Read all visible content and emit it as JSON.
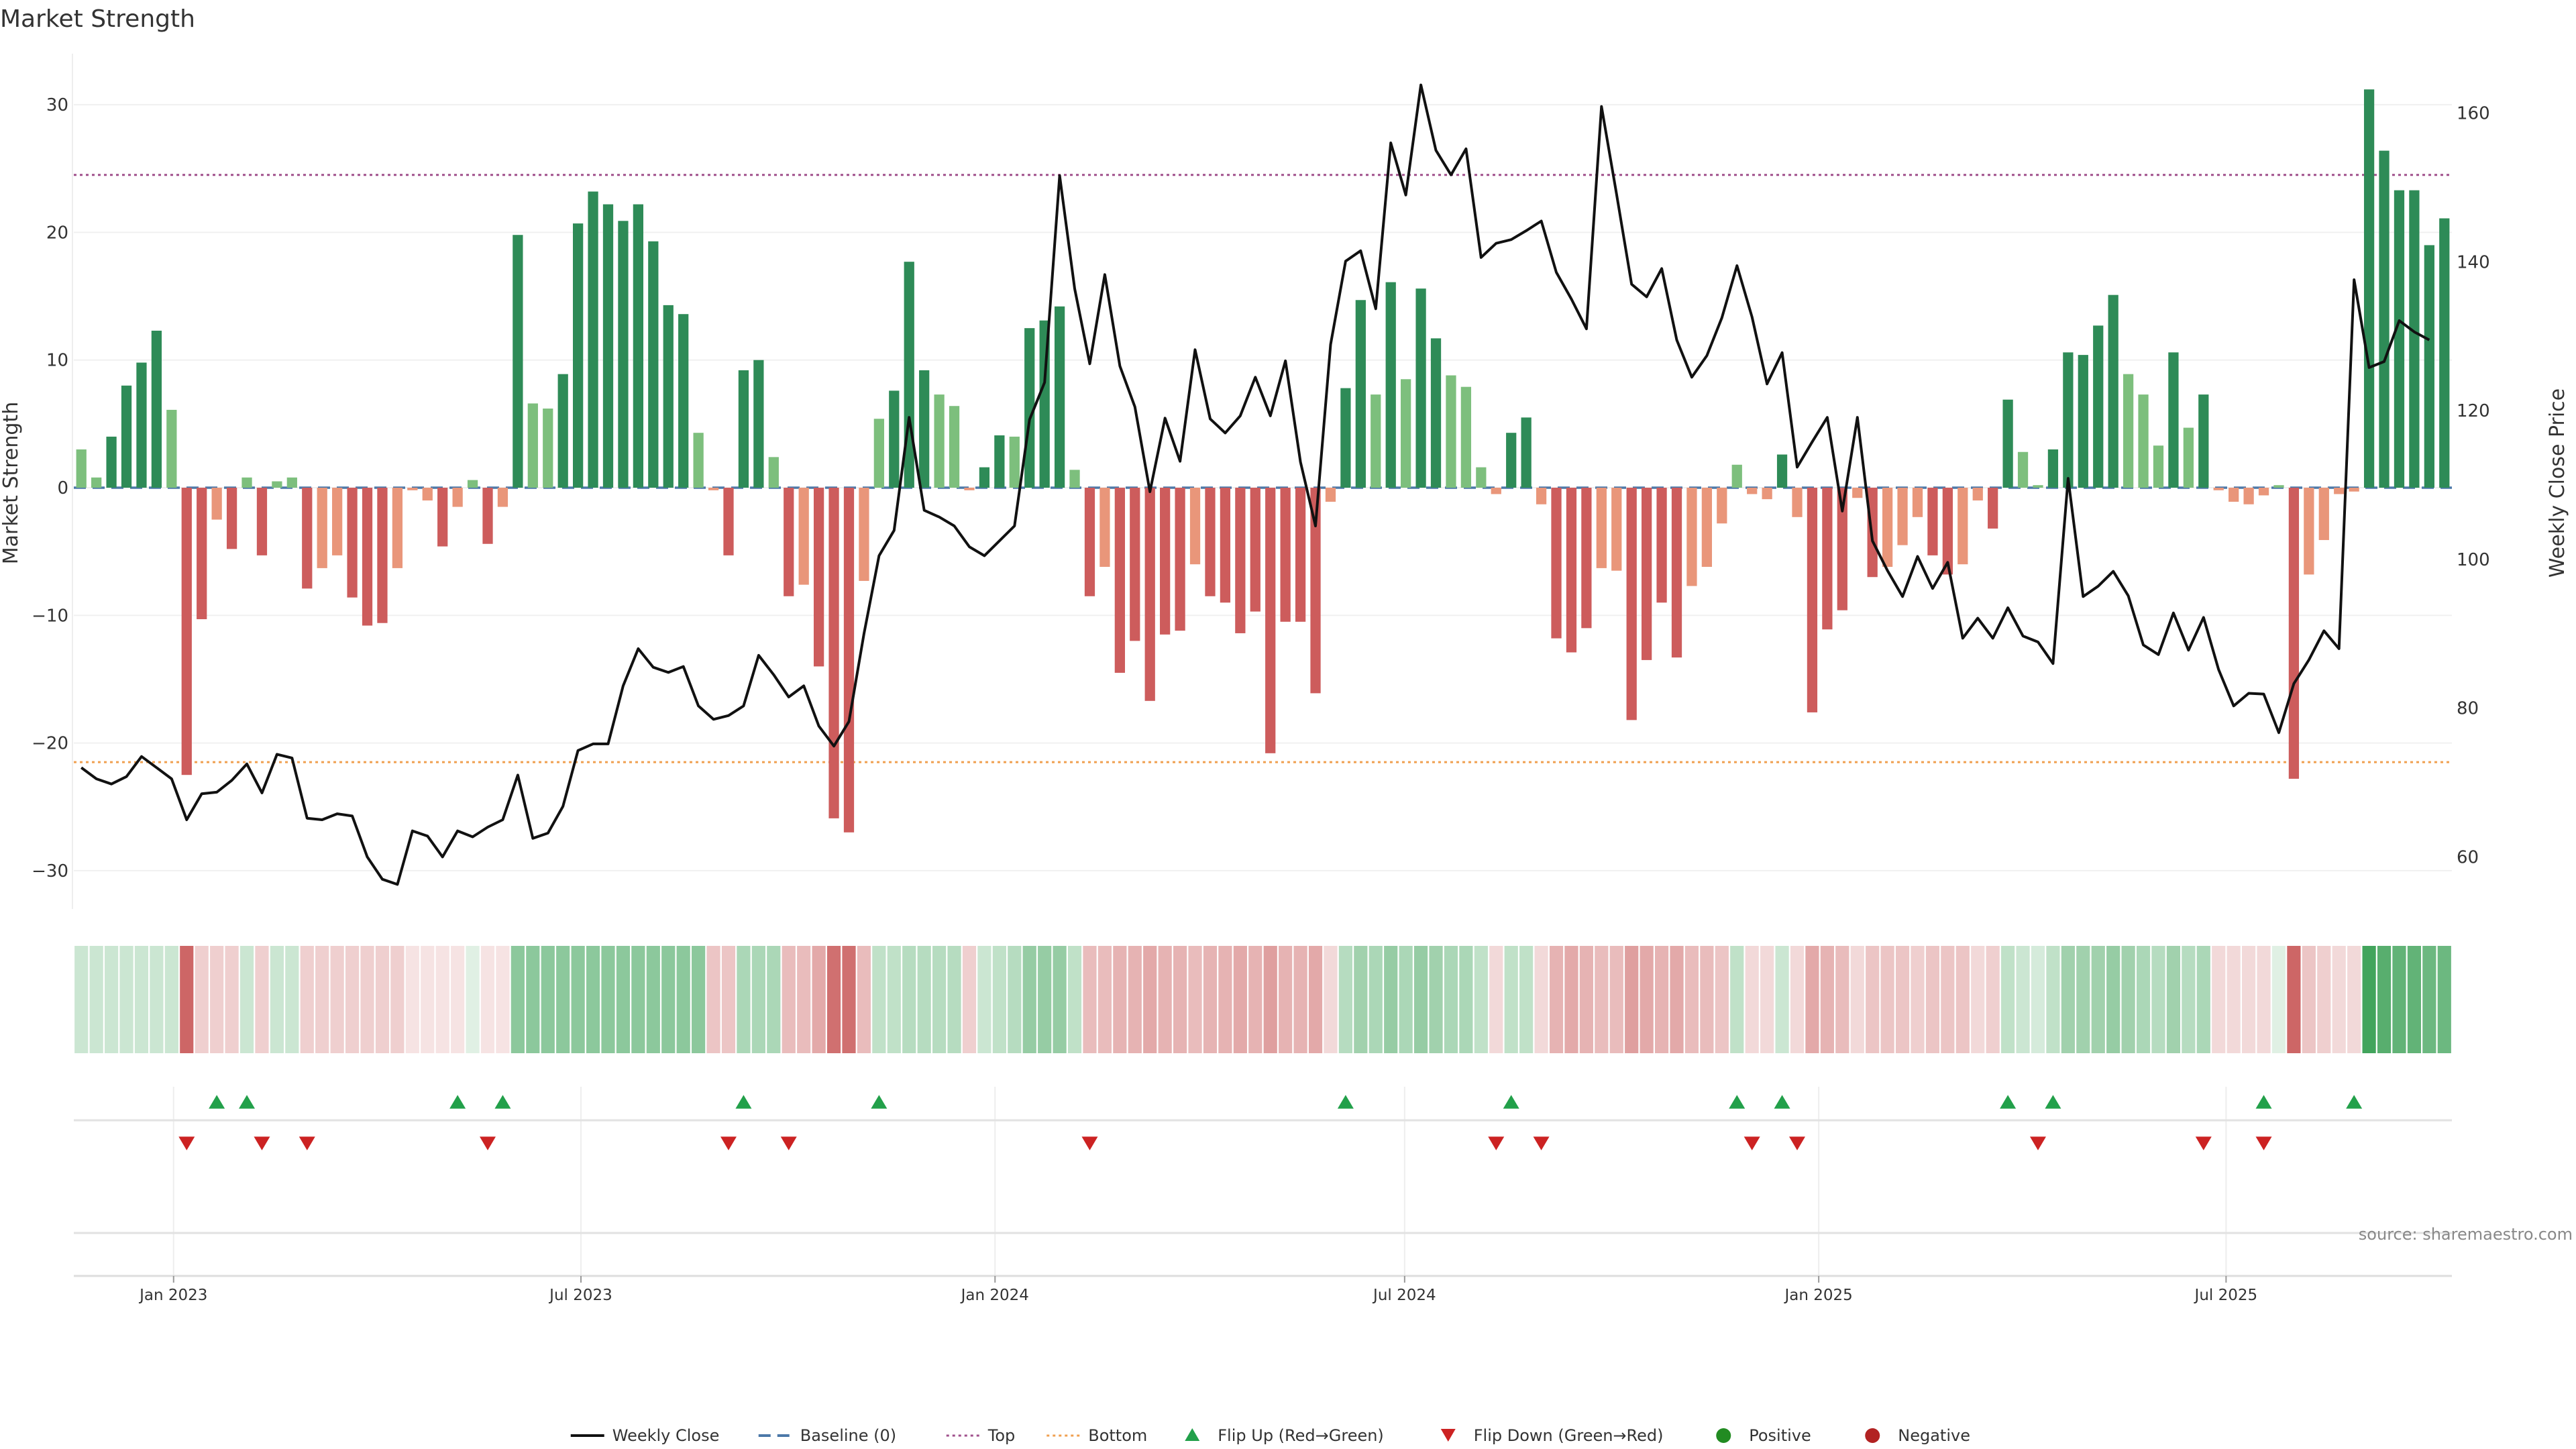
{
  "chart_data": {
    "type": "bar",
    "title": "Market Strength",
    "ylabel": "Market Strength",
    "y2label": "Weekly Close Price",
    "ylim": [
      -33,
      34
    ],
    "y2lim": [
      53,
      168
    ],
    "yticks": [
      30,
      20,
      10,
      0,
      -10,
      -20,
      -30
    ],
    "ytick_labels": [
      "30",
      "20",
      "10",
      "0",
      "−10",
      "−20",
      "−30"
    ],
    "y2ticks": [
      160,
      140,
      120,
      100,
      80,
      60
    ],
    "xdate_start": "2022-11-21",
    "xdate_end": "2025-10-06",
    "xticks": [
      {
        "date": "2023-01-01",
        "label": "Jan 2023"
      },
      {
        "date": "2023-07-01",
        "label": "Jul 2023"
      },
      {
        "date": "2024-01-01",
        "label": "Jan 2024"
      },
      {
        "date": "2024-07-01",
        "label": "Jul 2024"
      },
      {
        "date": "2025-01-01",
        "label": "Jan 2025"
      },
      {
        "date": "2025-07-01",
        "label": "Jul 2025"
      }
    ],
    "top_level": 24.5,
    "bottom_level": -21.5,
    "strength": [
      3,
      0.8,
      4,
      8,
      9.8,
      12.3,
      6.1,
      -22.5,
      -10.3,
      -2.5,
      -4.8,
      0.8,
      -5.3,
      0.5,
      0.8,
      -7.9,
      -6.3,
      -5.3,
      -8.6,
      -10.8,
      -10.6,
      -6.3,
      -0.2,
      -1,
      -4.6,
      -1.5,
      0.6,
      -4.4,
      -1.5,
      19.8,
      6.6,
      6.2,
      8.9,
      20.7,
      23.2,
      22.2,
      20.9,
      22.2,
      19.3,
      14.3,
      13.6,
      4.3,
      -0.2,
      -5.3,
      9.2,
      10,
      2.4,
      -8.5,
      -7.6,
      -14,
      -25.9,
      -27,
      -7.3,
      5.4,
      7.6,
      17.7,
      9.2,
      7.3,
      6.4,
      -0.2,
      1.6,
      4.1,
      4,
      12.5,
      13.1,
      14.2,
      1.4,
      -8.5,
      -6.2,
      -14.5,
      -12,
      -16.7,
      -11.5,
      -11.2,
      -6,
      -8.5,
      -9,
      -11.4,
      -9.7,
      -20.8,
      -10.5,
      -10.5,
      -16.1,
      -1.1,
      7.8,
      14.7,
      7.3,
      16.1,
      8.5,
      15.6,
      11.7,
      8.8,
      7.9,
      1.6,
      -0.5,
      4.3,
      5.5,
      -1.3,
      -11.8,
      -12.9,
      -11,
      -6.3,
      -6.5,
      -18.2,
      -13.5,
      -9,
      -13.3,
      -7.7,
      -6.2,
      -2.8,
      1.8,
      -0.5,
      -0.9,
      2.6,
      -2.3,
      -17.6,
      -11.1,
      -9.6,
      -0.8,
      -7,
      -6.2,
      -4.5,
      -2.3,
      -5.3,
      -6.8,
      -6,
      -1,
      -3.2,
      6.9,
      2.8,
      0.2,
      3,
      10.6,
      10.4,
      12.7,
      15.1,
      8.9,
      7.3,
      3.3,
      10.6,
      4.7,
      7.3,
      -0.2,
      -1.1,
      -1.3,
      -0.6,
      0.2,
      -22.8,
      -6.8,
      -4.1,
      -0.5,
      -0.3,
      31.2,
      26.4,
      23.3,
      23.3,
      19,
      21.1
    ],
    "close": [
      72,
      70.5,
      69.8,
      70.8,
      73.5,
      72,
      70.5,
      65,
      68.5,
      68.7,
      70.3,
      72.5,
      68.6,
      73.8,
      73.3,
      65.2,
      65,
      65.8,
      65.5,
      60,
      57,
      56.3,
      63.5,
      62.8,
      60,
      63.5,
      62.7,
      64,
      65,
      71,
      62.5,
      63.2,
      66.8,
      74.3,
      75.2,
      75.2,
      83,
      88,
      85.5,
      84.8,
      85.6,
      80.3,
      78.5,
      79,
      80.3,
      87.1,
      84.5,
      81.5,
      83,
      77.6,
      74.9,
      78.2,
      90,
      100.5,
      103.9,
      119.1,
      106.6,
      105.7,
      104.5,
      101.7,
      100.5,
      102.5,
      104.5,
      118.8,
      123.8,
      151.6,
      136.4,
      126.3,
      138.3,
      126,
      120.5,
      109.1,
      119,
      113.2,
      128.2,
      118.9,
      117,
      119.3,
      124.5,
      119.3,
      126.7,
      113.1,
      104.5,
      128.9,
      140.1,
      141.5,
      133.7,
      156,
      149,
      163.8,
      155,
      151.7,
      155.2,
      140.6,
      142.5,
      143,
      144.2,
      145.5,
      138.6,
      135,
      131,
      160.9,
      149.1,
      137,
      135.3,
      139.1,
      129.5,
      124.5,
      127.4,
      132.5,
      139.5,
      132.6,
      123.6,
      127.8,
      112.4,
      115.8,
      119.1,
      106.5,
      119.1,
      102.5,
      98.5,
      95,
      100.4,
      96.1,
      99.6,
      89.4,
      92.1,
      89.4,
      93.5,
      89.7,
      88.9,
      86,
      110.9,
      95,
      96.4,
      98.4,
      95.1,
      88.5,
      87.2,
      92.8,
      87.8,
      92.2,
      85.2,
      80.3,
      82,
      81.9,
      76.7,
      83.3,
      86.5,
      90.4,
      88,
      137.6,
      125.8,
      126.6,
      132.1,
      130.6,
      129.5
    ],
    "heat": [
      0.25,
      0.25,
      0.25,
      0.25,
      0.25,
      0.25,
      0.25,
      0.8,
      0.25,
      0.25,
      0.25,
      0.25,
      0.25,
      0.25,
      0.25,
      0.25,
      0.25,
      0.25,
      0.25,
      0.25,
      0.25,
      0.25,
      0.15,
      0.15,
      0.15,
      0.15,
      0.15,
      0.15,
      0.15,
      0.55,
      0.55,
      0.55,
      0.55,
      0.55,
      0.55,
      0.55,
      0.55,
      0.55,
      0.55,
      0.55,
      0.55,
      0.55,
      0.3,
      0.3,
      0.4,
      0.4,
      0.4,
      0.35,
      0.35,
      0.45,
      0.75,
      0.75,
      0.35,
      0.3,
      0.3,
      0.35,
      0.35,
      0.35,
      0.35,
      0.25,
      0.25,
      0.3,
      0.35,
      0.5,
      0.5,
      0.5,
      0.3,
      0.35,
      0.35,
      0.4,
      0.4,
      0.45,
      0.4,
      0.4,
      0.35,
      0.4,
      0.4,
      0.45,
      0.4,
      0.5,
      0.4,
      0.4,
      0.45,
      0.2,
      0.35,
      0.45,
      0.4,
      0.5,
      0.4,
      0.5,
      0.45,
      0.4,
      0.4,
      0.3,
      0.2,
      0.3,
      0.3,
      0.2,
      0.4,
      0.45,
      0.4,
      0.35,
      0.35,
      0.5,
      0.45,
      0.4,
      0.45,
      0.35,
      0.35,
      0.3,
      0.3,
      0.2,
      0.2,
      0.25,
      0.2,
      0.45,
      0.4,
      0.35,
      0.2,
      0.3,
      0.3,
      0.3,
      0.25,
      0.3,
      0.3,
      0.3,
      0.2,
      0.25,
      0.3,
      0.25,
      0.2,
      0.3,
      0.45,
      0.45,
      0.45,
      0.5,
      0.45,
      0.4,
      0.35,
      0.45,
      0.35,
      0.4,
      0.2,
      0.2,
      0.2,
      0.2,
      0.15,
      0.8,
      0.3,
      0.25,
      0.2,
      0.2,
      0.9,
      0.8,
      0.75,
      0.75,
      0.7,
      0.7
    ],
    "flip_up_weeks": [
      9,
      11,
      25,
      28,
      44,
      53,
      84,
      95,
      110,
      113,
      128,
      131,
      145,
      151
    ],
    "flip_down_weeks": [
      7,
      12,
      15,
      27,
      43,
      47,
      67,
      94,
      97,
      111,
      114,
      130,
      141,
      145
    ],
    "colors": {
      "strong_pos": "#2e8b57",
      "weak_pos": "#7dbf7d",
      "strong_neg": "#cd5c5c",
      "weak_neg": "#e9967a",
      "close": "#111111",
      "baseline": "#4c78a8",
      "top": "#a0508c",
      "bottom": "#f0a050",
      "flip_up": "#22a04a",
      "flip_down": "#cc2222",
      "positive": "#228b22",
      "negative": "#b22222"
    }
  },
  "legend": {
    "items": [
      {
        "label": "Weekly Close",
        "kind": "line",
        "color": "#111111"
      },
      {
        "label": "Baseline (0)",
        "kind": "dash",
        "color": "#4c78a8"
      },
      {
        "label": "Top",
        "kind": "dot",
        "color": "#a0508c"
      },
      {
        "label": "Bottom",
        "kind": "dot",
        "color": "#f0a050"
      },
      {
        "label": "Flip Up (Red→Green)",
        "kind": "tri-up",
        "color": "#22a04a"
      },
      {
        "label": "Flip Down (Green→Red)",
        "kind": "tri-down",
        "color": "#cc2222"
      },
      {
        "label": "Positive",
        "kind": "circle",
        "color": "#228b22"
      },
      {
        "label": "Negative",
        "kind": "circle",
        "color": "#b22222"
      }
    ]
  },
  "source_note": "source: sharemaestro.com"
}
